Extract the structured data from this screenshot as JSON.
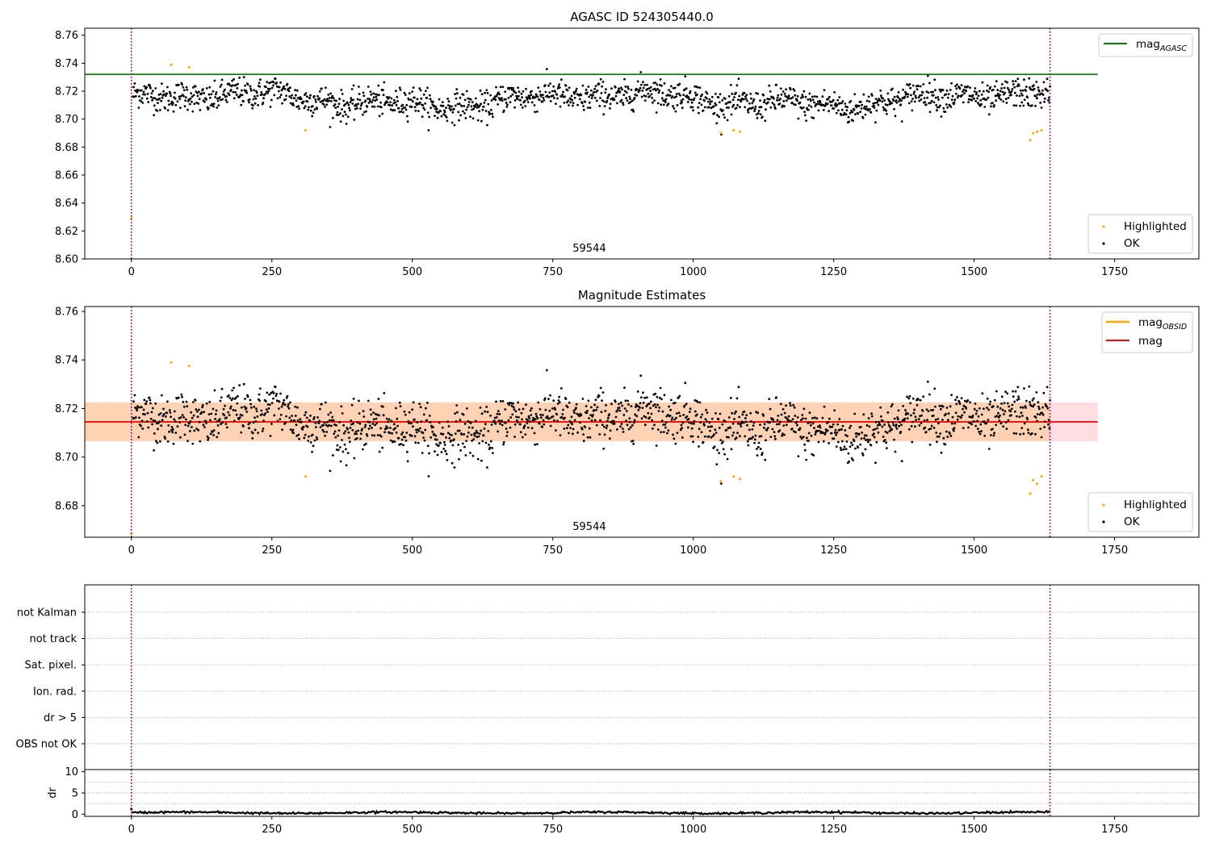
{
  "chart_data": [
    {
      "id": "top",
      "type": "scatter",
      "title": "AGASC ID 524305440.0",
      "annotation": "59544",
      "xlim": [
        -83,
        1900
      ],
      "ylim": [
        8.6,
        8.765
      ],
      "xticks": [
        0,
        250,
        500,
        750,
        1000,
        1250,
        1500,
        1750
      ],
      "yticks": [
        8.6,
        8.62,
        8.64,
        8.66,
        8.68,
        8.7,
        8.72,
        8.74,
        8.76
      ],
      "vlines": [
        0,
        1635
      ],
      "hlines": [
        {
          "name": "mag_AGASC",
          "y": 8.732,
          "x_range": [
            -83,
            1720
          ],
          "color": "#008000"
        }
      ],
      "series": [
        {
          "name": "Highlighted",
          "color": "#ffa500",
          "points": [
            [
              0,
              8.629
            ],
            [
              71,
              8.739
            ],
            [
              103,
              8.737
            ],
            [
              310,
              8.692
            ],
            [
              1049,
              8.69
            ],
            [
              1072,
              8.692
            ],
            [
              1083,
              8.691
            ],
            [
              1600,
              8.685
            ],
            [
              1605,
              8.69
            ],
            [
              1612,
              8.691
            ],
            [
              1620,
              8.692
            ]
          ]
        },
        {
          "name": "OK",
          "color": "#000000",
          "n": 1630,
          "x_range": [
            3,
            1635
          ],
          "baseline": 8.714,
          "spread": 0.0058
        }
      ],
      "legend": {
        "position": "top-right and lower-right",
        "line_labels": [
          "mag",
          "AGASC"
        ],
        "marker_labels": [
          "Highlighted",
          "OK"
        ]
      }
    },
    {
      "id": "middle",
      "type": "scatter",
      "title": "Magnitude Estimates",
      "annotation": "59544",
      "xlim": [
        -83,
        1900
      ],
      "ylim": [
        8.667,
        8.762
      ],
      "xticks": [
        0,
        250,
        500,
        750,
        1000,
        1250,
        1500,
        1750
      ],
      "yticks": [
        8.68,
        8.7,
        8.72,
        8.74,
        8.76
      ],
      "vlines": [
        0,
        1635
      ],
      "bands": [
        {
          "name": "mag band",
          "y": [
            8.7065,
            8.7225
          ],
          "x_range": [
            -83,
            1720
          ],
          "color": "#ffc0cb"
        },
        {
          "name": "mag_OBSID band",
          "y": [
            8.7065,
            8.7225
          ],
          "x_range": [
            -83,
            1635
          ],
          "color": "#ffcc99"
        }
      ],
      "hlines": [
        {
          "name": "mag_OBSID",
          "y": 8.7145,
          "x_range": [
            -83,
            1635
          ],
          "color": "#ffa500"
        },
        {
          "name": "mag",
          "y": 8.7145,
          "x_range": [
            -83,
            1720
          ],
          "color": "#ff0000"
        }
      ],
      "series": [
        {
          "name": "Highlighted",
          "color": "#ffa500",
          "points": [
            [
              0,
              8.6685
            ],
            [
              71,
              8.739
            ],
            [
              103,
              8.7375
            ],
            [
              310,
              8.692
            ],
            [
              1049,
              8.69
            ],
            [
              1072,
              8.692
            ],
            [
              1083,
              8.691
            ],
            [
              1600,
              8.685
            ],
            [
              1605,
              8.6905
            ],
            [
              1612,
              8.689
            ],
            [
              1620,
              8.692
            ]
          ]
        },
        {
          "name": "OK",
          "color": "#000000",
          "n": 1630,
          "x_range": [
            3,
            1635
          ],
          "baseline": 8.714,
          "spread": 0.0058
        }
      ],
      "legend": {
        "position": "top-right and lower-right",
        "line_labels": [
          [
            "mag",
            "OBSID"
          ],
          [
            "mag",
            ""
          ]
        ],
        "marker_labels": [
          "Highlighted",
          "OK"
        ]
      }
    },
    {
      "id": "flags",
      "type": "scatter",
      "categories": [
        "not Kalman",
        "not track",
        "Sat. pixel.",
        "Ion. rad.",
        "dr > 5",
        "OBS not OK"
      ],
      "xlim": [
        -83,
        1900
      ],
      "vlines": [
        0,
        1635
      ],
      "grid": true
    },
    {
      "id": "dr",
      "type": "line",
      "ylabel": "dr",
      "xlim": [
        -83,
        1900
      ],
      "ylim": [
        -0.5,
        10.5
      ],
      "xticks": [
        0,
        250,
        500,
        750,
        1000,
        1250,
        1500,
        1750
      ],
      "yticks": [
        0,
        5,
        10
      ],
      "vlines": [
        0,
        1635
      ],
      "series": [
        {
          "name": "dr",
          "color": "#000000",
          "n": 1635,
          "x_range": [
            0,
            1635
          ],
          "baseline": 0.35,
          "spread": 0.2
        }
      ]
    }
  ]
}
